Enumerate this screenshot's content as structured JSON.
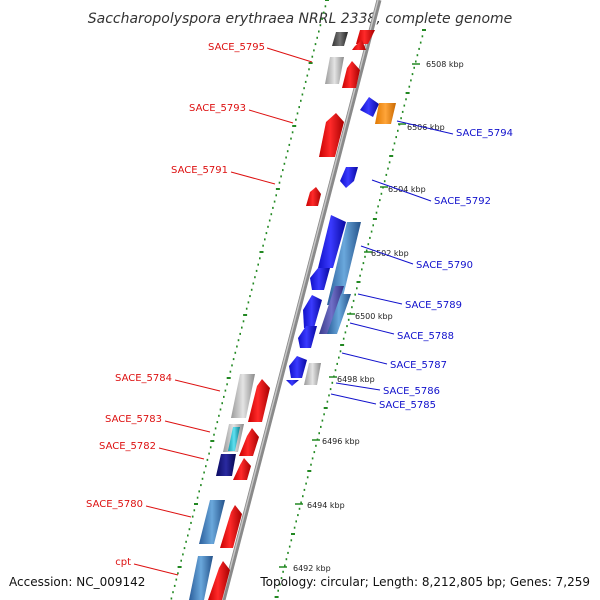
{
  "title": "Saccharopolyspora erythraea NRRL 2338, complete genome",
  "footer": {
    "accession": "Accession: NC_009142",
    "topology": "Topology: circular; Length: 8,212,805 bp; Genes: 7,259"
  },
  "colors": {
    "forward_label": "#dd1111",
    "reverse_label": "#1111cc",
    "tick": "#228822",
    "backbone": "#8a8a8a"
  },
  "kbp_ticks": [
    "6508 kbp",
    "6506 kbp",
    "6504 kbp",
    "6502 kbp",
    "6500 kbp",
    "6498 kbp",
    "6496 kbp",
    "6494 kbp",
    "6492 kbp"
  ],
  "left_labels": [
    "SACE_5795",
    "SACE_5793",
    "SACE_5791",
    "SACE_5784",
    "SACE_5783",
    "SACE_5782",
    "SACE_5780",
    "cpt"
  ],
  "right_labels": [
    "SACE_5794",
    "SACE_5792",
    "SACE_5790",
    "SACE_5789",
    "SACE_5788",
    "SACE_5787",
    "SACE_5786",
    "SACE_5785"
  ]
}
